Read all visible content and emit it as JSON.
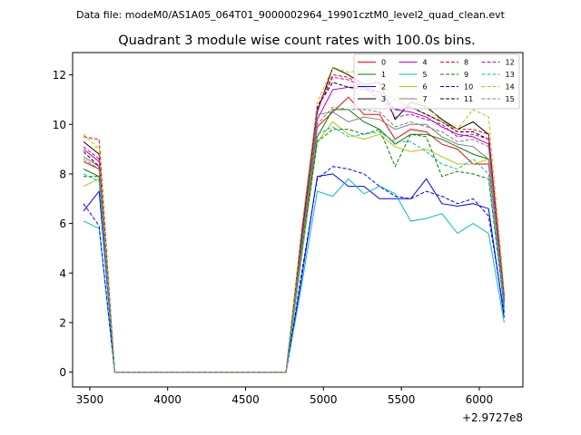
{
  "header": {
    "file_label": "Data file: modeM0/AS1A05_064T01_9000002964_19901cztM0_level2_quad_clean.evt"
  },
  "chart_data": {
    "type": "line",
    "title": "Quadrant 3 module wise count rates with 100.0s bins.",
    "xlabel": "",
    "ylabel": "",
    "x_offset_label": "+2.9727e8",
    "xlim": [
      3390,
      6280
    ],
    "ylim": [
      -0.6,
      12.9
    ],
    "x_ticks": [
      3500,
      4000,
      4500,
      5000,
      5500,
      6000
    ],
    "x_tick_labels": [
      "3500",
      "4000",
      "4500",
      "5000",
      "5500",
      "6000"
    ],
    "y_ticks": [
      0,
      2,
      4,
      6,
      8,
      10,
      12
    ],
    "y_tick_labels": [
      "0",
      "2",
      "4",
      "6",
      "8",
      "10",
      "12"
    ],
    "grid": false,
    "legend_position": "top-right",
    "x": [
      3460,
      3560,
      3660,
      3760,
      3860,
      3960,
      4060,
      4160,
      4260,
      4360,
      4460,
      4560,
      4660,
      4760,
      4860,
      4960,
      5060,
      5160,
      5260,
      5360,
      5460,
      5560,
      5660,
      5760,
      5860,
      5960,
      6060,
      6160
    ],
    "series": [
      {
        "name": "0",
        "color": "#ff0000",
        "dash": false,
        "values": [
          8.5,
          8.2,
          0,
          0,
          0,
          0,
          0,
          0,
          0,
          0,
          0,
          0,
          0,
          0,
          5.0,
          9.9,
          10.5,
          11.1,
          10.4,
          10.4,
          9.4,
          9.8,
          9.7,
          9.2,
          9.0,
          8.4,
          8.4,
          2.8
        ]
      },
      {
        "name": "1",
        "color": "#008000",
        "dash": false,
        "values": [
          8.2,
          7.9,
          0,
          0,
          0,
          0,
          0,
          0,
          0,
          0,
          0,
          0,
          0,
          0,
          4.8,
          9.5,
          10.6,
          10.6,
          10.1,
          9.8,
          9.2,
          9.6,
          9.6,
          9.4,
          9.1,
          8.8,
          8.6,
          2.6
        ]
      },
      {
        "name": "2",
        "color": "#0000ff",
        "dash": false,
        "values": [
          6.5,
          7.3,
          0,
          0,
          0,
          0,
          0,
          0,
          0,
          0,
          0,
          0,
          0,
          0,
          3.8,
          7.9,
          8.0,
          7.5,
          7.5,
          7.0,
          7.0,
          7.0,
          7.8,
          6.8,
          6.7,
          6.8,
          6.6,
          2.2
        ]
      },
      {
        "name": "3",
        "color": "#000000",
        "dash": false,
        "values": [
          9.3,
          8.8,
          0,
          0,
          0,
          0,
          0,
          0,
          0,
          0,
          0,
          0,
          0,
          0,
          5.6,
          10.5,
          12.3,
          12.0,
          11.6,
          11.7,
          10.2,
          10.9,
          10.7,
          10.2,
          9.8,
          10.1,
          9.6,
          2.9
        ]
      },
      {
        "name": "4",
        "color": "#c000c0",
        "dash": false,
        "values": [
          9.0,
          8.5,
          0,
          0,
          0,
          0,
          0,
          0,
          0,
          0,
          0,
          0,
          0,
          0,
          5.3,
          10.2,
          11.4,
          11.5,
          11.5,
          11.0,
          10.6,
          10.5,
          10.3,
          9.9,
          9.6,
          9.5,
          9.2,
          2.8
        ]
      },
      {
        "name": "5",
        "color": "#00c0c0",
        "dash": false,
        "values": [
          6.1,
          5.8,
          0,
          0,
          0,
          0,
          0,
          0,
          0,
          0,
          0,
          0,
          0,
          0,
          3.5,
          7.3,
          7.1,
          7.8,
          7.2,
          7.5,
          7.2,
          6.1,
          6.2,
          6.4,
          5.6,
          6.0,
          5.6,
          2.0
        ]
      },
      {
        "name": "6",
        "color": "#c0c000",
        "dash": false,
        "values": [
          7.5,
          7.8,
          0,
          0,
          0,
          0,
          0,
          0,
          0,
          0,
          0,
          0,
          0,
          0,
          4.6,
          9.3,
          10.1,
          9.6,
          9.4,
          9.6,
          9.1,
          8.9,
          9.0,
          8.7,
          8.4,
          8.4,
          8.6,
          2.5
        ]
      },
      {
        "name": "7",
        "color": "#808080",
        "dash": false,
        "values": [
          8.7,
          8.3,
          0,
          0,
          0,
          0,
          0,
          0,
          0,
          0,
          0,
          0,
          0,
          0,
          5.1,
          10.4,
          10.5,
          10.1,
          10.3,
          10.2,
          9.8,
          10.0,
          10.0,
          9.5,
          9.2,
          9.1,
          8.6,
          2.7
        ]
      },
      {
        "name": "8",
        "color": "#ff0000",
        "dash": true,
        "values": [
          9.5,
          9.4,
          0,
          0,
          0,
          0,
          0,
          0,
          0,
          0,
          0,
          0,
          0,
          0,
          5.7,
          10.7,
          12.0,
          11.9,
          11.5,
          11.3,
          11.0,
          10.7,
          10.4,
          10.1,
          9.8,
          9.8,
          9.6,
          3.1
        ]
      },
      {
        "name": "9",
        "color": "#008000",
        "dash": true,
        "values": [
          7.9,
          7.9,
          0,
          0,
          0,
          0,
          0,
          0,
          0,
          0,
          0,
          0,
          0,
          0,
          4.9,
          9.3,
          9.8,
          9.8,
          9.6,
          9.8,
          8.3,
          9.6,
          9.5,
          7.9,
          8.1,
          8.0,
          7.8,
          2.6
        ]
      },
      {
        "name": "10",
        "color": "#0000ff",
        "dash": true,
        "values": [
          6.8,
          5.9,
          0,
          0,
          0,
          0,
          0,
          0,
          0,
          0,
          0,
          0,
          0,
          0,
          4.0,
          7.8,
          8.3,
          8.2,
          8.0,
          7.5,
          7.1,
          7.0,
          7.3,
          7.1,
          6.8,
          7.0,
          6.3,
          2.4
        ]
      },
      {
        "name": "11",
        "color": "#000000",
        "dash": true,
        "values": [
          8.9,
          8.3,
          0,
          0,
          0,
          0,
          0,
          0,
          0,
          0,
          0,
          0,
          0,
          0,
          5.4,
          10.7,
          11.7,
          11.5,
          11.4,
          11.3,
          10.6,
          10.7,
          10.4,
          10.1,
          9.7,
          9.7,
          9.4,
          3.0
        ]
      },
      {
        "name": "12",
        "color": "#c000c0",
        "dash": true,
        "values": [
          9.1,
          8.6,
          0,
          0,
          0,
          0,
          0,
          0,
          0,
          0,
          0,
          0,
          0,
          0,
          5.5,
          10.6,
          11.9,
          11.8,
          11.5,
          11.3,
          10.3,
          10.4,
          10.2,
          10.0,
          9.5,
          9.6,
          9.4,
          3.0
        ]
      },
      {
        "name": "13",
        "color": "#00c0c0",
        "dash": true,
        "values": [
          8.0,
          7.7,
          0,
          0,
          0,
          0,
          0,
          0,
          0,
          0,
          0,
          0,
          0,
          0,
          4.9,
          9.6,
          9.9,
          9.5,
          9.6,
          9.7,
          9.3,
          9.3,
          8.9,
          8.4,
          8.2,
          8.6,
          8.0,
          2.6
        ]
      },
      {
        "name": "14",
        "color": "#c0c000",
        "dash": true,
        "values": [
          9.6,
          9.0,
          0,
          0,
          0,
          0,
          0,
          0,
          0,
          0,
          0,
          0,
          0,
          0,
          5.8,
          10.9,
          12.3,
          12.1,
          12.2,
          11.6,
          11.1,
          11.1,
          10.8,
          10.1,
          9.8,
          10.6,
          10.3,
          3.3
        ]
      },
      {
        "name": "15",
        "color": "#808080",
        "dash": true,
        "values": [
          8.6,
          8.2,
          0,
          0,
          0,
          0,
          0,
          0,
          0,
          0,
          0,
          0,
          0,
          0,
          5.1,
          10.0,
          10.7,
          10.6,
          10.6,
          10.5,
          9.9,
          10.1,
          9.9,
          9.7,
          9.3,
          9.4,
          9.1,
          2.8
        ]
      }
    ]
  }
}
